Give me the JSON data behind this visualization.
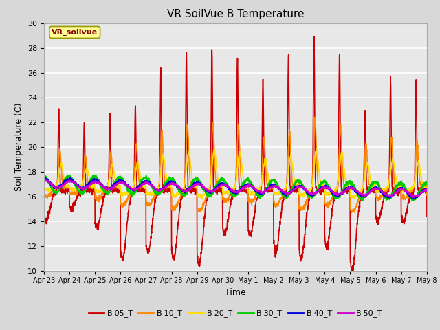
{
  "title": "VR SoilVue B Temperature",
  "xlabel": "Time",
  "ylabel": "Soil Temperature (C)",
  "ylim": [
    10,
    30
  ],
  "background_color": "#d8d8d8",
  "plot_bg_color": "#e8e8e8",
  "legend_label": "VR_soilvue",
  "legend_box_color": "#ffff99",
  "legend_box_edge": "#999900",
  "series_order": [
    "B-05_T",
    "B-10_T",
    "B-20_T",
    "B-30_T",
    "B-40_T",
    "B-50_T"
  ],
  "series": {
    "B-05_T": {
      "color": "#cc0000",
      "linewidth": 1.2
    },
    "B-10_T": {
      "color": "#ff8800",
      "linewidth": 1.2
    },
    "B-20_T": {
      "color": "#ffdd00",
      "linewidth": 1.2
    },
    "B-30_T": {
      "color": "#00cc00",
      "linewidth": 1.5
    },
    "B-40_T": {
      "color": "#0000dd",
      "linewidth": 1.5
    },
    "B-50_T": {
      "color": "#cc00cc",
      "linewidth": 1.5
    }
  },
  "tick_labels": [
    "Apr 23",
    "Apr 24",
    "Apr 25",
    "Apr 26",
    "Apr 27",
    "Apr 28",
    "Apr 29",
    "Apr 30",
    "May 1",
    "May 2",
    "May 3",
    "May 4",
    "May 5",
    "May 6",
    "May 7",
    "May 8"
  ],
  "yticks": [
    10,
    12,
    14,
    16,
    18,
    20,
    22,
    24,
    26,
    28,
    30
  ]
}
